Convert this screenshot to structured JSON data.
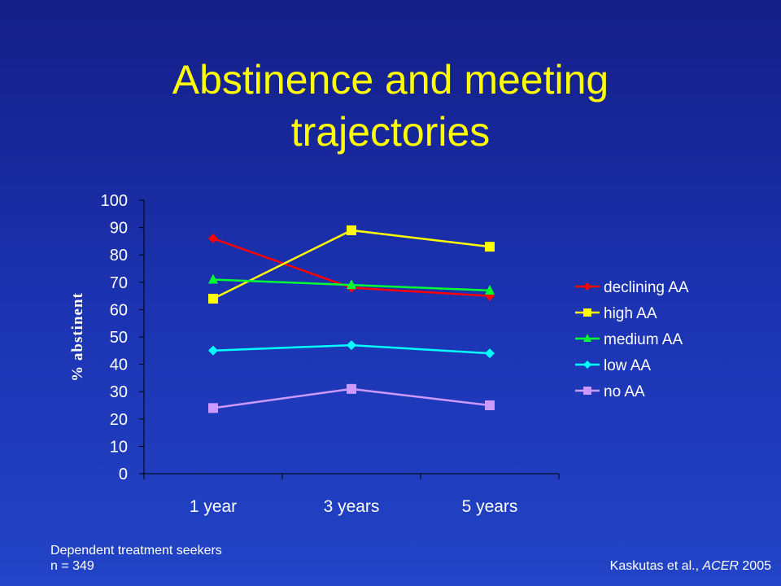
{
  "slide": {
    "title_line1": "Abstinence and meeting",
    "title_line2": "trajectories",
    "footnote_line1": "Dependent treatment seekers",
    "footnote_line2": "n = 349",
    "citation_authors": "Kaskutas et al., ",
    "citation_journal": "ACER",
    "citation_year": " 2005"
  },
  "colors": {
    "title": "#ffff00",
    "text": "#ffffff"
  },
  "chart_data": {
    "type": "line",
    "categories": [
      "1 year",
      "3 years",
      "5 years"
    ],
    "ylabel": "% abstinent",
    "xlabel": "",
    "ylim": [
      0,
      100
    ],
    "yticks": [
      0,
      10,
      20,
      30,
      40,
      50,
      60,
      70,
      80,
      90,
      100
    ],
    "grid": false,
    "legend": "right",
    "series": [
      {
        "name": "declining AA",
        "values": [
          86,
          68,
          65
        ],
        "color": "#ff0000",
        "marker": "diamond"
      },
      {
        "name": "high AA",
        "values": [
          64,
          89,
          83
        ],
        "color": "#ffff00",
        "marker": "square"
      },
      {
        "name": "medium AA",
        "values": [
          71,
          69,
          67
        ],
        "color": "#00ff33",
        "marker": "triangle"
      },
      {
        "name": "low AA",
        "values": [
          45,
          47,
          44
        ],
        "color": "#00ffff",
        "marker": "diamond"
      },
      {
        "name": "no AA",
        "values": [
          24,
          31,
          25
        ],
        "color": "#cc99ff",
        "marker": "square"
      }
    ]
  }
}
